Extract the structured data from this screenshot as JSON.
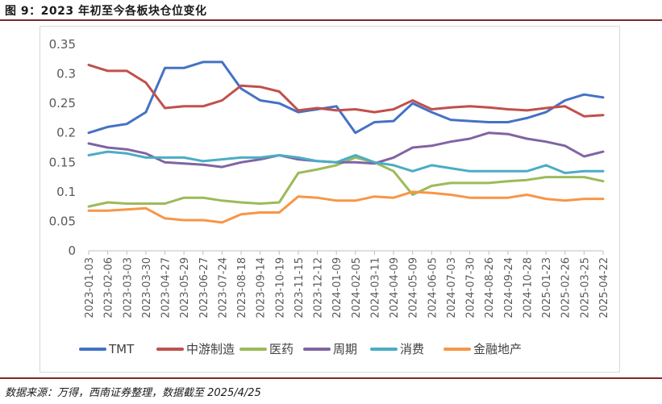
{
  "figure": {
    "title": "图 9：2023 年初至今各板块仓位变化",
    "source": "数据来源：万得，西南证券整理，数据截至 2025/4/25"
  },
  "colors": {
    "TMT": "#4472c4",
    "中游制造": "#c0504d",
    "医药": "#9bbb59",
    "周期": "#8064a2",
    "消费": "#4bacc6",
    "金融地产": "#f79646",
    "rule": "#7a2a2a",
    "axis": "#bfbfbf"
  },
  "chart_data": {
    "type": "line",
    "title": "",
    "xlabel": "",
    "ylabel": "",
    "ylim": [
      0,
      0.35
    ],
    "yticks": [
      0,
      0.05,
      0.1,
      0.15,
      0.2,
      0.25,
      0.3,
      0.35
    ],
    "ytick_labels": [
      "0",
      "0.05",
      "0.1",
      "0.15",
      "0.2",
      "0.25",
      "0.3",
      "0.35"
    ],
    "categories": [
      "2023-01-03",
      "2023-02-06",
      "2023-03-03",
      "2023-03-30",
      "2023-04-27",
      "2023-05-29",
      "2023-06-27",
      "2023-07-24",
      "2023-08-18",
      "2023-09-14",
      "2023-10-19",
      "2023-11-15",
      "2023-12-12",
      "2024-01-09",
      "2024-02-05",
      "2024-03-11",
      "2024-04-09",
      "2024-05-09",
      "2024-06-05",
      "2024-07-03",
      "2024-07-30",
      "2024-08-26",
      "2024-09-24",
      "2024-10-28",
      "2025-01-23",
      "2025-02-26",
      "2025-03-25",
      "2025-04-22"
    ],
    "legend_position": "bottom",
    "series": [
      {
        "name": "TMT",
        "values": [
          0.2,
          0.21,
          0.215,
          0.235,
          0.31,
          0.31,
          0.32,
          0.32,
          0.275,
          0.255,
          0.25,
          0.235,
          0.24,
          0.245,
          0.2,
          0.218,
          0.22,
          0.25,
          0.235,
          0.222,
          0.22,
          0.218,
          0.218,
          0.225,
          0.235,
          0.255,
          0.265,
          0.26
        ]
      },
      {
        "name": "中游制造",
        "values": [
          0.315,
          0.305,
          0.305,
          0.285,
          0.242,
          0.245,
          0.245,
          0.255,
          0.28,
          0.278,
          0.27,
          0.238,
          0.242,
          0.238,
          0.24,
          0.235,
          0.24,
          0.255,
          0.24,
          0.243,
          0.245,
          0.243,
          0.24,
          0.238,
          0.242,
          0.245,
          0.228,
          0.23
        ]
      },
      {
        "name": "医药",
        "values": [
          0.075,
          0.082,
          0.08,
          0.08,
          0.08,
          0.09,
          0.09,
          0.085,
          0.082,
          0.08,
          0.082,
          0.132,
          0.138,
          0.145,
          0.158,
          0.15,
          0.135,
          0.095,
          0.11,
          0.115,
          0.115,
          0.115,
          0.118,
          0.12,
          0.125,
          0.125,
          0.125,
          0.118
        ]
      },
      {
        "name": "周期",
        "values": [
          0.182,
          0.175,
          0.172,
          0.165,
          0.15,
          0.148,
          0.146,
          0.142,
          0.15,
          0.155,
          0.162,
          0.155,
          0.152,
          0.15,
          0.15,
          0.148,
          0.158,
          0.175,
          0.178,
          0.185,
          0.19,
          0.2,
          0.198,
          0.19,
          0.185,
          0.178,
          0.16,
          0.168
        ]
      },
      {
        "name": "消费",
        "values": [
          0.162,
          0.168,
          0.165,
          0.158,
          0.158,
          0.158,
          0.152,
          0.155,
          0.158,
          0.158,
          0.162,
          0.158,
          0.152,
          0.15,
          0.162,
          0.15,
          0.145,
          0.135,
          0.145,
          0.14,
          0.135,
          0.135,
          0.135,
          0.135,
          0.145,
          0.132,
          0.135,
          0.135
        ]
      },
      {
        "name": "金融地产",
        "values": [
          0.068,
          0.068,
          0.07,
          0.072,
          0.055,
          0.052,
          0.052,
          0.048,
          0.062,
          0.065,
          0.065,
          0.092,
          0.09,
          0.085,
          0.085,
          0.092,
          0.09,
          0.1,
          0.098,
          0.095,
          0.09,
          0.09,
          0.09,
          0.095,
          0.088,
          0.085,
          0.088,
          0.088
        ]
      }
    ]
  }
}
